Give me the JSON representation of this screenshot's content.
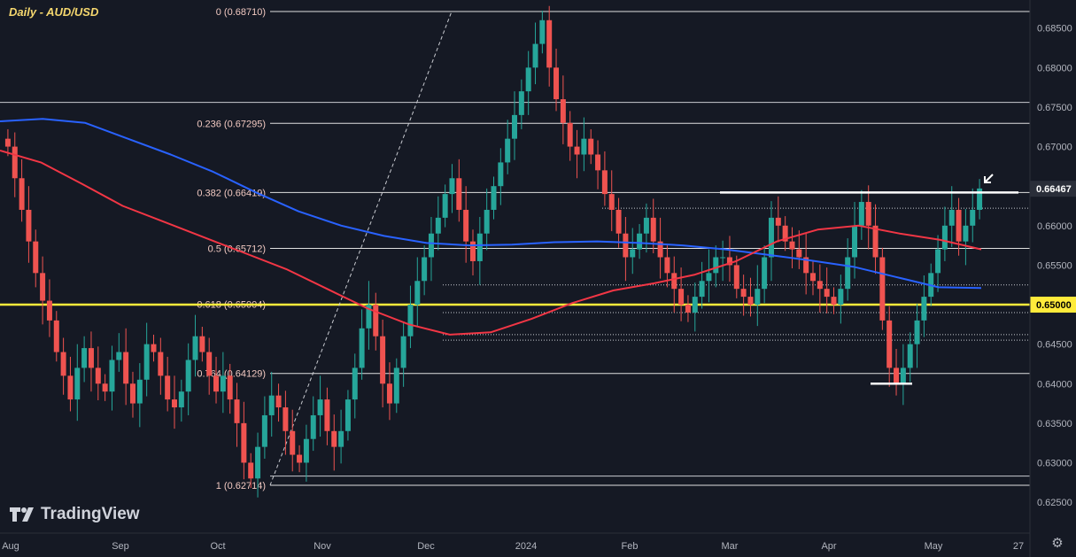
{
  "chart_data": {
    "type": "candlestick",
    "title": "Daily - AUD/USD",
    "ylim": [
      0.6225,
      0.6871
    ],
    "y_ticks": [
      "0.68500",
      "0.68000",
      "0.67500",
      "0.67000",
      "0.66500",
      "0.66000",
      "0.65500",
      "0.65000",
      "0.64500",
      "0.64000",
      "0.63500",
      "0.63000",
      "0.62500"
    ],
    "x_labels": [
      "Aug",
      "Sep",
      "Oct",
      "Nov",
      "Dec",
      "2024",
      "Feb",
      "Mar",
      "Apr",
      "May",
      "27"
    ],
    "fib_levels": [
      {
        "label": "0 (0.68710)",
        "value": 0.6871
      },
      {
        "label": "0.236 (0.67295)",
        "value": 0.67295
      },
      {
        "label": "0.382 (0.66419)",
        "value": 0.66419
      },
      {
        "label": "0.5 (0.65712)",
        "value": 0.65712
      },
      {
        "label": "0.618 (0.65004)",
        "value": 0.65004
      },
      {
        "label": "0.764 (0.64129)",
        "value": 0.64129
      },
      {
        "label": "1 (0.62714)",
        "value": 0.62714
      }
    ],
    "horizontal_lines": [
      {
        "value": 0.6756
      },
      {
        "value": 0.6622
      },
      {
        "value": 0.6525
      },
      {
        "value": 0.649
      },
      {
        "value": 0.6462
      },
      {
        "value": 0.6455
      },
      {
        "value": 0.6283
      }
    ],
    "key_level": {
      "value": 0.65,
      "label": "0.65000"
    },
    "last_price": {
      "value": 0.66467,
      "label": "0.66467"
    },
    "sma_blue": [
      0.6732,
      0.6735,
      0.673,
      0.671,
      0.669,
      0.6668,
      0.6642,
      0.6618,
      0.66,
      0.6587,
      0.6578,
      0.6575,
      0.6576,
      0.6579,
      0.658,
      0.6578,
      0.6575,
      0.657,
      0.6563,
      0.6556,
      0.6548,
      0.6535,
      0.6522,
      0.6521
    ],
    "sma_red": [
      0.6695,
      0.668,
      0.6653,
      0.6625,
      0.6605,
      0.6585,
      0.6565,
      0.6545,
      0.652,
      0.6495,
      0.6475,
      0.6462,
      0.6465,
      0.6482,
      0.6502,
      0.6518,
      0.6527,
      0.6538,
      0.6555,
      0.658,
      0.6595,
      0.66,
      0.659,
      0.6582,
      0.657
    ],
    "candles_ohlc_summary": "approx. daily OHLC from Aug 2023 to mid-May 2024",
    "series": [
      {
        "values": [
          0.67,
          0.666,
          0.662,
          0.658,
          0.654,
          0.6505,
          0.648,
          0.644,
          0.641,
          0.638,
          0.642,
          0.6445,
          0.642,
          0.64,
          0.639,
          0.643,
          0.644,
          0.64,
          0.6375,
          0.6405,
          0.645,
          0.644,
          0.641,
          0.638,
          0.637,
          0.639,
          0.643,
          0.646,
          0.644,
          0.641,
          0.639,
          0.641,
          0.638,
          0.635,
          0.63,
          0.628,
          0.632,
          0.636,
          0.6385,
          0.637,
          0.634,
          0.631,
          0.63,
          0.633,
          0.636,
          0.638,
          0.634,
          0.632,
          0.634,
          0.638,
          0.642,
          0.647,
          0.65,
          0.646,
          0.64,
          0.6375,
          0.642,
          0.646,
          0.65,
          0.653,
          0.656,
          0.659,
          0.661,
          0.664,
          0.666,
          0.662,
          0.658,
          0.6555,
          0.659,
          0.662,
          0.665,
          0.668,
          0.671,
          0.674,
          0.677,
          0.68,
          0.683,
          0.686,
          0.68,
          0.676,
          0.673,
          0.67,
          0.669,
          0.671,
          0.669,
          0.667,
          0.664,
          0.662,
          0.659,
          0.656,
          0.657,
          0.659,
          0.661,
          0.658,
          0.656,
          0.654,
          0.652,
          0.65,
          0.649,
          0.651,
          0.653,
          0.654,
          0.656,
          0.656,
          0.655,
          0.652,
          0.651,
          0.65,
          0.652,
          0.656,
          0.661,
          0.66,
          0.658,
          0.657,
          0.656,
          0.654,
          0.653,
          0.652,
          0.651,
          0.65,
          0.652,
          0.656,
          0.66,
          0.663,
          0.66,
          0.656,
          0.648,
          0.642,
          0.64,
          0.642,
          0.645,
          0.648,
          0.651,
          0.654,
          0.657,
          0.66,
          0.662,
          0.658,
          0.66,
          0.662,
          0.6647
        ]
      }
    ]
  },
  "branding": {
    "logo_text": "TradingView"
  },
  "colors": {
    "bull": "#26a69a",
    "bear": "#ef5350",
    "sma_blue": "#2962ff",
    "sma_red": "#f23645",
    "key_level": "#ffeb3b",
    "bg": "#151924",
    "grid": "#2a2e39"
  },
  "icons": {
    "settings": "gear-icon",
    "arrow": "arrow-down-left-icon"
  }
}
